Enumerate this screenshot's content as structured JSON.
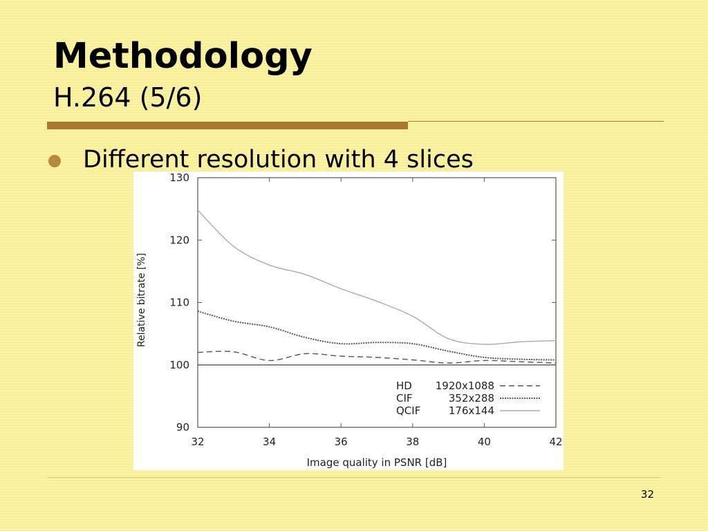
{
  "slide": {
    "title": "Methodology",
    "subtitle": "H.264 (5/6)",
    "bullet": "Different resolution with 4 slices",
    "page_number": "32"
  },
  "colors": {
    "accent_rule": "#a8792e",
    "bullet": "#b58a3c",
    "background": "#fdf6a6"
  },
  "chart_data": {
    "type": "line",
    "xlabel": "Image quality in PSNR [dB]",
    "ylabel": "Relative bitrate [%]",
    "xlim": [
      32,
      42
    ],
    "ylim": [
      90,
      130
    ],
    "x_ticks": [
      32,
      34,
      36,
      38,
      40,
      42
    ],
    "y_ticks": [
      90,
      100,
      110,
      120,
      130
    ],
    "grid": false,
    "legend_position": "bottom-right",
    "series": [
      {
        "name": "HD",
        "resolution": "1920x1088",
        "style": "dashed",
        "color": "#555555",
        "x": [
          32,
          33,
          34,
          35,
          36,
          37,
          38,
          39,
          40,
          41,
          42
        ],
        "values": [
          102.0,
          102.1,
          100.7,
          101.8,
          101.4,
          101.2,
          100.8,
          100.3,
          100.7,
          100.5,
          100.3
        ]
      },
      {
        "name": "CIF",
        "resolution": "352x288",
        "style": "dotted",
        "color": "#555555",
        "x": [
          32,
          33,
          34,
          35,
          36,
          37,
          38,
          39,
          40,
          41,
          42
        ],
        "values": [
          108.6,
          107.0,
          106.1,
          104.4,
          103.4,
          103.6,
          103.4,
          102.2,
          101.2,
          100.9,
          100.8
        ]
      },
      {
        "name": "QCIF",
        "resolution": "176x144",
        "style": "solid",
        "color": "#aaaaaa",
        "x": [
          32,
          33,
          34,
          35,
          36,
          37,
          38,
          39,
          40,
          41,
          42
        ],
        "values": [
          124.8,
          119.0,
          116.0,
          114.5,
          112.2,
          110.2,
          107.8,
          104.2,
          103.3,
          103.7,
          103.9
        ]
      },
      {
        "name": "",
        "style": "solid",
        "color": "#555555",
        "x": [
          32,
          42
        ],
        "values": [
          100,
          100
        ]
      }
    ]
  }
}
